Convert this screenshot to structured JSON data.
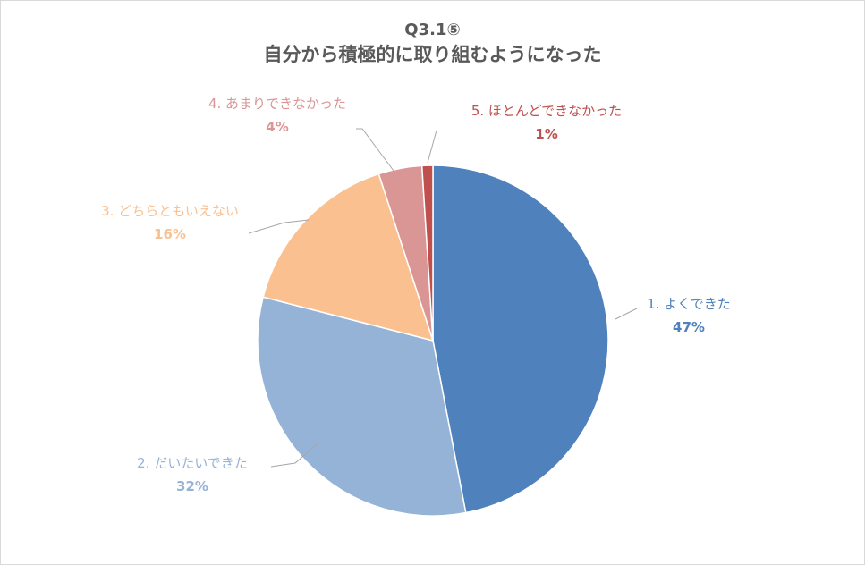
{
  "chart_data": {
    "type": "pie",
    "title": "Q3.1⑤",
    "subtitle": "自分から積極的に取り組むようになった",
    "slices": [
      {
        "label": "1. よくできた",
        "value": 47,
        "value_label": "47%",
        "color": "#4f81bd",
        "label_color": "#4f81bd"
      },
      {
        "label": "2. だいたいできた",
        "value": 32,
        "value_label": "32%",
        "color": "#95b3d7",
        "label_color": "#95b3d7"
      },
      {
        "label": "3. どちらともいえない",
        "value": 16,
        "value_label": "16%",
        "color": "#fac090",
        "label_color": "#fac090"
      },
      {
        "label": "4. あまりできなかった",
        "value": 4,
        "value_label": "4%",
        "color": "#d99694",
        "label_color": "#d99694"
      },
      {
        "label": "5. ほとんどできなかった",
        "value": 1,
        "value_label": "1%",
        "color": "#c0504d",
        "label_color": "#c0504d"
      }
    ]
  }
}
